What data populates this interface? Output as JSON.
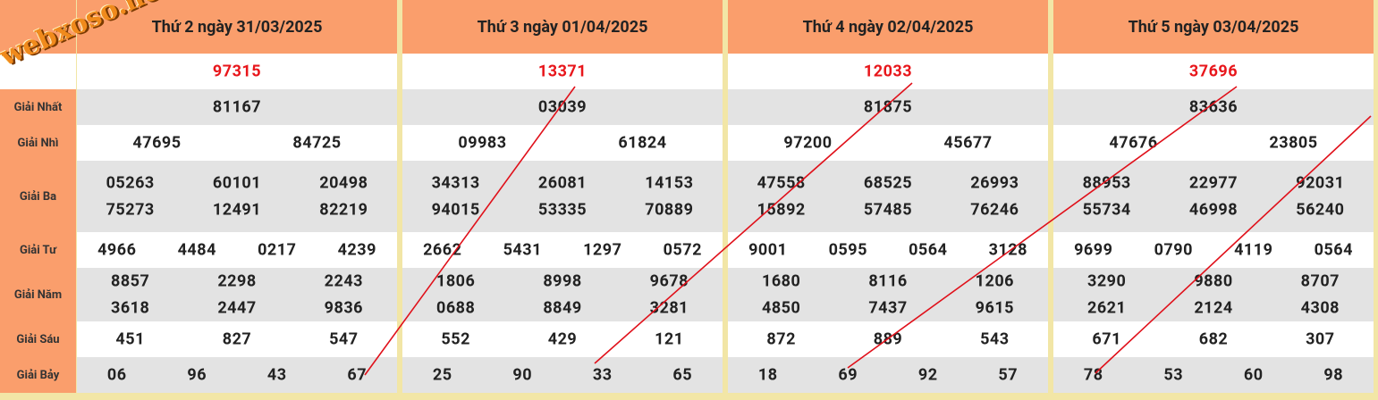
{
  "watermark": "webxoso.net",
  "row_labels": [
    "Giải Nhất",
    "Giải Nhì",
    "Giải Ba",
    "Giải Tư",
    "Giải Năm",
    "Giải Sáu",
    "Giải Bảy"
  ],
  "days": [
    {
      "header": "Thứ 2 ngày 31/03/2025",
      "special": [
        "97315"
      ],
      "nhat": [
        "81167"
      ],
      "nhi": [
        "47695",
        "84725"
      ],
      "ba": [
        "05263",
        "60101",
        "20498",
        "75273",
        "12491",
        "82219"
      ],
      "tu": [
        "4966",
        "4484",
        "0217",
        "4239"
      ],
      "nam": [
        "8857",
        "2298",
        "2243",
        "3618",
        "2447",
        "9836"
      ],
      "sau": [
        "451",
        "827",
        "547"
      ],
      "bay": [
        "06",
        "96",
        "43",
        "67"
      ]
    },
    {
      "header": "Thứ 3 ngày 01/04/2025",
      "special": [
        "13371"
      ],
      "nhat": [
        "03039"
      ],
      "nhi": [
        "09983",
        "61824"
      ],
      "ba": [
        "34313",
        "26081",
        "14153",
        "94015",
        "53335",
        "70889"
      ],
      "tu": [
        "2662",
        "5431",
        "1297",
        "0572"
      ],
      "nam": [
        "1806",
        "8998",
        "9678",
        "0688",
        "8849",
        "3281"
      ],
      "sau": [
        "552",
        "429",
        "121"
      ],
      "bay": [
        "25",
        "90",
        "33",
        "65"
      ]
    },
    {
      "header": "Thứ 4 ngày 02/04/2025",
      "special": [
        "12033"
      ],
      "nhat": [
        "81875"
      ],
      "nhi": [
        "97200",
        "45677"
      ],
      "ba": [
        "47558",
        "68525",
        "26993",
        "15892",
        "57485",
        "76246"
      ],
      "tu": [
        "9001",
        "0595",
        "0564",
        "3128"
      ],
      "nam": [
        "1680",
        "8116",
        "1206",
        "4850",
        "7437",
        "9615"
      ],
      "sau": [
        "872",
        "889",
        "543"
      ],
      "bay": [
        "18",
        "69",
        "92",
        "57"
      ]
    },
    {
      "header": "Thứ 5 ngày 03/04/2025",
      "special": [
        "37696"
      ],
      "nhat": [
        "83636"
      ],
      "nhi": [
        "47676",
        "23805"
      ],
      "ba": [
        "88953",
        "22977",
        "92031",
        "55734",
        "46998",
        "56240"
      ],
      "tu": [
        "9699",
        "0790",
        "4119",
        "0564"
      ],
      "nam": [
        "3290",
        "9880",
        "8707",
        "2621",
        "2124",
        "4308"
      ],
      "sau": [
        "671",
        "682",
        "307"
      ],
      "bay": [
        "78",
        "53",
        "60",
        "98"
      ]
    }
  ]
}
